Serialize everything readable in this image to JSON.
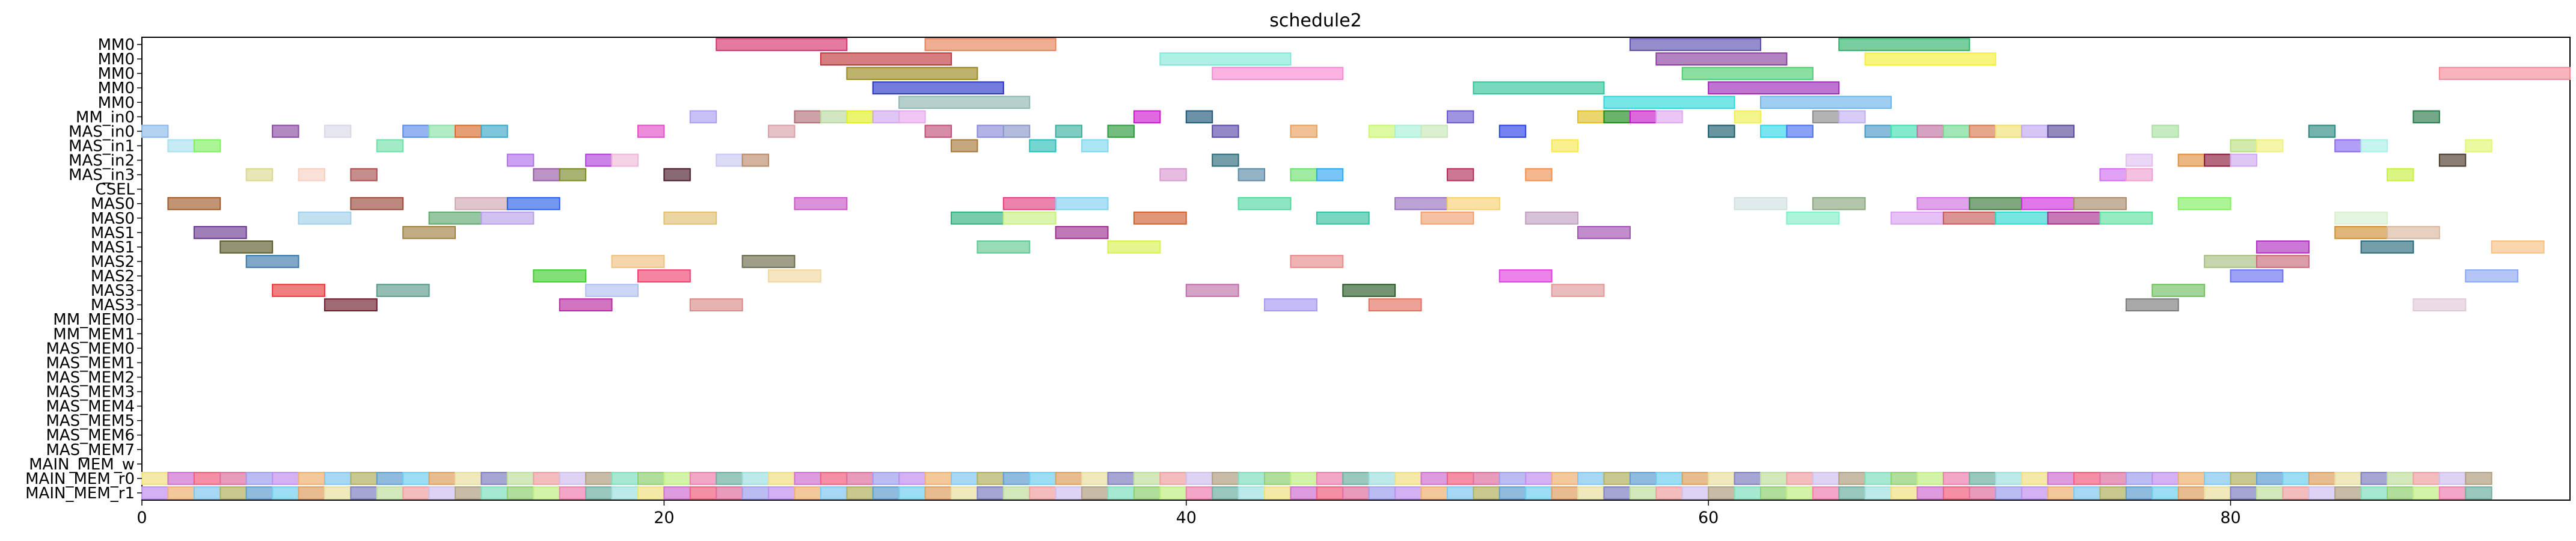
{
  "chart_data": {
    "type": "gantt",
    "title": "schedule2",
    "xlabel": "",
    "ylabel": "",
    "xlim": [
      0,
      93
    ],
    "x_ticks": [
      0,
      20,
      40,
      60,
      80
    ],
    "grid": false,
    "legend": "none",
    "rows": [
      "MM0",
      "MM0",
      "MM0",
      "MM0",
      "MM0",
      "MM_in0",
      "MAS_in0",
      "MAS_in1",
      "MAS_in2",
      "MAS_in3",
      "CSEL",
      "MAS0",
      "MAS0",
      "MAS1",
      "MAS1",
      "MAS2",
      "MAS2",
      "MAS3",
      "MAS3",
      "MM_MEM0",
      "MM_MEM1",
      "MAS_MEM0",
      "MAS_MEM1",
      "MAS_MEM2",
      "MAS_MEM3",
      "MAS_MEM4",
      "MAS_MEM5",
      "MAS_MEM6",
      "MAS_MEM7",
      "MAIN_MEM_w",
      "MAIN_MEM_r0",
      "MAIN_MEM_r1"
    ],
    "bars": [
      {
        "row": 0,
        "start": 22,
        "end": 27,
        "color": "#d6336c"
      },
      {
        "row": 0,
        "start": 30,
        "end": 35,
        "color": "#e8825a"
      },
      {
        "row": 0,
        "start": 57,
        "end": 62,
        "color": "#5a4fb0"
      },
      {
        "row": 0,
        "start": 65,
        "end": 70,
        "color": "#2fb36a"
      },
      {
        "row": 1,
        "start": 26,
        "end": 31,
        "color": "#c0383c"
      },
      {
        "row": 1,
        "start": 39,
        "end": 44,
        "color": "#7fe8d8"
      },
      {
        "row": 1,
        "start": 58,
        "end": 63,
        "color": "#8a3fa0"
      },
      {
        "row": 1,
        "start": 66,
        "end": 71,
        "color": "#f5f03a"
      },
      {
        "row": 2,
        "start": 27,
        "end": 32,
        "color": "#9a8a1f"
      },
      {
        "row": 2,
        "start": 41,
        "end": 46,
        "color": "#f98ad2"
      },
      {
        "row": 2,
        "start": 59,
        "end": 64,
        "color": "#4ccf6f"
      },
      {
        "row": 2,
        "start": 88,
        "end": 93,
        "color": "#f48a98"
      },
      {
        "row": 3,
        "start": 28,
        "end": 33,
        "color": "#2a35c8"
      },
      {
        "row": 3,
        "start": 51,
        "end": 56,
        "color": "#2fc49a"
      },
      {
        "row": 3,
        "start": 60,
        "end": 65,
        "color": "#9e2ab8"
      },
      {
        "row": 4,
        "start": 29,
        "end": 34,
        "color": "#8db7b0"
      },
      {
        "row": 4,
        "start": 56,
        "end": 61,
        "color": "#2ed8d8"
      },
      {
        "row": 4,
        "start": 62,
        "end": 67,
        "color": "#6db4e8"
      },
      {
        "row": 5,
        "start": 21,
        "end": 22,
        "color": "#a9a0f0"
      },
      {
        "row": 5,
        "start": 25,
        "end": 26,
        "color": "#b06f78"
      },
      {
        "row": 5,
        "start": 26,
        "end": 27,
        "color": "#b8d8a0"
      },
      {
        "row": 5,
        "start": 27,
        "end": 28,
        "color": "#e0f020"
      },
      {
        "row": 5,
        "start": 28,
        "end": 29,
        "color": "#cfa8f0"
      },
      {
        "row": 5,
        "start": 29,
        "end": 30,
        "color": "#e8a8f0"
      },
      {
        "row": 5,
        "start": 38,
        "end": 39,
        "color": "#d018d0"
      },
      {
        "row": 5,
        "start": 40,
        "end": 41,
        "color": "#1f5878"
      },
      {
        "row": 5,
        "start": 50,
        "end": 51,
        "color": "#6a5ad0"
      },
      {
        "row": 5,
        "start": 55,
        "end": 56,
        "color": "#e0c020"
      },
      {
        "row": 5,
        "start": 56,
        "end": 57,
        "color": "#1a8a1a"
      },
      {
        "row": 5,
        "start": 57,
        "end": 58,
        "color": "#c818c8"
      },
      {
        "row": 5,
        "start": 58,
        "end": 59,
        "color": "#e0a8f0"
      },
      {
        "row": 5,
        "start": 61,
        "end": 62,
        "color": "#f0f050"
      },
      {
        "row": 5,
        "start": 64,
        "end": 65,
        "color": "#8a8a8a"
      },
      {
        "row": 5,
        "start": 65,
        "end": 66,
        "color": "#c0b0f0"
      },
      {
        "row": 5,
        "start": 87,
        "end": 88,
        "color": "#2a7a4a"
      },
      {
        "row": 6,
        "start": 0,
        "end": 1,
        "color": "#8ab8e8"
      },
      {
        "row": 6,
        "start": 5,
        "end": 6,
        "color": "#8a4aa0"
      },
      {
        "row": 6,
        "start": 7,
        "end": 8,
        "color": "#d8d8e8"
      },
      {
        "row": 6,
        "start": 10,
        "end": 11,
        "color": "#5a8ae8"
      },
      {
        "row": 6,
        "start": 11,
        "end": 12,
        "color": "#8ae0a8"
      },
      {
        "row": 6,
        "start": 12,
        "end": 13,
        "color": "#d86a2a"
      },
      {
        "row": 6,
        "start": 13,
        "end": 14,
        "color": "#3aa8c8"
      },
      {
        "row": 6,
        "start": 19,
        "end": 20,
        "color": "#e050c8"
      },
      {
        "row": 6,
        "start": 24,
        "end": 25,
        "color": "#d8a0a8"
      },
      {
        "row": 6,
        "start": 30,
        "end": 31,
        "color": "#c05078"
      },
      {
        "row": 6,
        "start": 32,
        "end": 33,
        "color": "#8a8ad8"
      },
      {
        "row": 6,
        "start": 33,
        "end": 34,
        "color": "#8a98c8"
      },
      {
        "row": 6,
        "start": 35,
        "end": 36,
        "color": "#3ab0a0"
      },
      {
        "row": 6,
        "start": 37,
        "end": 38,
        "color": "#2a9a3a"
      },
      {
        "row": 6,
        "start": 41,
        "end": 42,
        "color": "#5a4aa8"
      },
      {
        "row": 6,
        "start": 44,
        "end": 45,
        "color": "#e8a060"
      },
      {
        "row": 6,
        "start": 47,
        "end": 48,
        "color": "#c8f870"
      },
      {
        "row": 6,
        "start": 48,
        "end": 49,
        "color": "#a8f0d8"
      },
      {
        "row": 6,
        "start": 49,
        "end": 50,
        "color": "#c8e8b8"
      },
      {
        "row": 6,
        "start": 52,
        "end": 53,
        "color": "#2a40e8"
      },
      {
        "row": 6,
        "start": 60,
        "end": 61,
        "color": "#1a5a6a"
      },
      {
        "row": 6,
        "start": 62,
        "end": 63,
        "color": "#30d8e8"
      },
      {
        "row": 6,
        "start": 63,
        "end": 64,
        "color": "#4a70f0"
      },
      {
        "row": 6,
        "start": 66,
        "end": 67,
        "color": "#4a98c8"
      },
      {
        "row": 6,
        "start": 67,
        "end": 68,
        "color": "#40e0b0"
      },
      {
        "row": 6,
        "start": 68,
        "end": 69,
        "color": "#c070a0"
      },
      {
        "row": 6,
        "start": 69,
        "end": 70,
        "color": "#70d890"
      },
      {
        "row": 6,
        "start": 70,
        "end": 71,
        "color": "#d87a50"
      },
      {
        "row": 6,
        "start": 71,
        "end": 72,
        "color": "#f0e070"
      },
      {
        "row": 6,
        "start": 72,
        "end": 73,
        "color": "#c0a8f0"
      },
      {
        "row": 6,
        "start": 73,
        "end": 74,
        "color": "#5a4a98"
      },
      {
        "row": 6,
        "start": 77,
        "end": 78,
        "color": "#a8e0a0"
      },
      {
        "row": 6,
        "start": 83,
        "end": 84,
        "color": "#2a8a80"
      },
      {
        "row": 7,
        "start": 1,
        "end": 2,
        "color": "#a8e0f0"
      },
      {
        "row": 7,
        "start": 2,
        "end": 3,
        "color": "#80f060"
      },
      {
        "row": 7,
        "start": 9,
        "end": 10,
        "color": "#70e0a8"
      },
      {
        "row": 7,
        "start": 31,
        "end": 32,
        "color": "#a8783a"
      },
      {
        "row": 7,
        "start": 34,
        "end": 35,
        "color": "#28c0b8"
      },
      {
        "row": 7,
        "start": 36,
        "end": 37,
        "color": "#80d8f0"
      },
      {
        "row": 7,
        "start": 54,
        "end": 55,
        "color": "#f8e850"
      },
      {
        "row": 7,
        "start": 80,
        "end": 81,
        "color": "#b8e080"
      },
      {
        "row": 7,
        "start": 81,
        "end": 82,
        "color": "#f0f080"
      },
      {
        "row": 7,
        "start": 84,
        "end": 85,
        "color": "#8a6af0"
      },
      {
        "row": 7,
        "start": 85,
        "end": 86,
        "color": "#a8f0e8"
      },
      {
        "row": 7,
        "start": 89,
        "end": 90,
        "color": "#e0f870"
      },
      {
        "row": 8,
        "start": 14,
        "end": 15,
        "color": "#b070e8"
      },
      {
        "row": 8,
        "start": 17,
        "end": 18,
        "color": "#b040d8"
      },
      {
        "row": 8,
        "start": 18,
        "end": 19,
        "color": "#f0b8d8"
      },
      {
        "row": 8,
        "start": 22,
        "end": 23,
        "color": "#c8c8f0"
      },
      {
        "row": 8,
        "start": 23,
        "end": 24,
        "color": "#b88a6a"
      },
      {
        "row": 8,
        "start": 41,
        "end": 42,
        "color": "#2a6a7a"
      },
      {
        "row": 8,
        "start": 76,
        "end": 77,
        "color": "#e0c0f0"
      },
      {
        "row": 8,
        "start": 78,
        "end": 79,
        "color": "#e09040"
      },
      {
        "row": 8,
        "start": 79,
        "end": 80,
        "color": "#8a1a3a"
      },
      {
        "row": 8,
        "start": 80,
        "end": 81,
        "color": "#d0a8f0"
      },
      {
        "row": 8,
        "start": 88,
        "end": 89,
        "color": "#4a3a2a"
      },
      {
        "row": 9,
        "start": 4,
        "end": 5,
        "color": "#d8d890"
      },
      {
        "row": 9,
        "start": 6,
        "end": 7,
        "color": "#f8d0c0"
      },
      {
        "row": 9,
        "start": 8,
        "end": 9,
        "color": "#a85050"
      },
      {
        "row": 9,
        "start": 15,
        "end": 16,
        "color": "#9a5aa8"
      },
      {
        "row": 9,
        "start": 16,
        "end": 17,
        "color": "#7a8a28"
      },
      {
        "row": 9,
        "start": 20,
        "end": 21,
        "color": "#4a1a2a"
      },
      {
        "row": 9,
        "start": 39,
        "end": 40,
        "color": "#d898d0"
      },
      {
        "row": 9,
        "start": 42,
        "end": 43,
        "color": "#5a8aa8"
      },
      {
        "row": 9,
        "start": 44,
        "end": 45,
        "color": "#70e070"
      },
      {
        "row": 9,
        "start": 45,
        "end": 46,
        "color": "#30a8f0"
      },
      {
        "row": 9,
        "start": 50,
        "end": 51,
        "color": "#b0305a"
      },
      {
        "row": 9,
        "start": 53,
        "end": 54,
        "color": "#f09050"
      },
      {
        "row": 9,
        "start": 75,
        "end": 76,
        "color": "#d070f0"
      },
      {
        "row": 9,
        "start": 76,
        "end": 77,
        "color": "#f0a0d0"
      },
      {
        "row": 9,
        "start": 86,
        "end": 87,
        "color": "#c8f040"
      },
      {
        "row": 11,
        "start": 1,
        "end": 3,
        "color": "#a05a2a"
      },
      {
        "row": 11,
        "start": 8,
        "end": 10,
        "color": "#9a4a3a"
      },
      {
        "row": 11,
        "start": 12,
        "end": 14,
        "color": "#d0a8b0"
      },
      {
        "row": 11,
        "start": 14,
        "end": 16,
        "color": "#2a60e8"
      },
      {
        "row": 11,
        "start": 25,
        "end": 27,
        "color": "#c858c8"
      },
      {
        "row": 11,
        "start": 33,
        "end": 35,
        "color": "#e04080"
      },
      {
        "row": 11,
        "start": 35,
        "end": 37,
        "color": "#80d0f0"
      },
      {
        "row": 11,
        "start": 42,
        "end": 44,
        "color": "#50d8a0"
      },
      {
        "row": 11,
        "start": 48,
        "end": 50,
        "color": "#9a70c0"
      },
      {
        "row": 11,
        "start": 50,
        "end": 52,
        "color": "#f8d070"
      },
      {
        "row": 11,
        "start": 61,
        "end": 63,
        "color": "#d0e0e0"
      },
      {
        "row": 11,
        "start": 64,
        "end": 66,
        "color": "#8aa880"
      },
      {
        "row": 11,
        "start": 68,
        "end": 70,
        "color": "#d070e0"
      },
      {
        "row": 11,
        "start": 70,
        "end": 72,
        "color": "#3a7a3a"
      },
      {
        "row": 11,
        "start": 72,
        "end": 74,
        "color": "#d030e0"
      },
      {
        "row": 11,
        "start": 74,
        "end": 76,
        "color": "#a88a6a"
      },
      {
        "row": 11,
        "start": 78,
        "end": 80,
        "color": "#80f060"
      },
      {
        "row": 12,
        "start": 6,
        "end": 8,
        "color": "#a0d0e8"
      },
      {
        "row": 12,
        "start": 11,
        "end": 13,
        "color": "#60a870"
      },
      {
        "row": 12,
        "start": 13,
        "end": 15,
        "color": "#b8a0e8"
      },
      {
        "row": 12,
        "start": 20,
        "end": 22,
        "color": "#e0c070"
      },
      {
        "row": 12,
        "start": 31,
        "end": 33,
        "color": "#30b080"
      },
      {
        "row": 12,
        "start": 33,
        "end": 35,
        "color": "#c8f080"
      },
      {
        "row": 12,
        "start": 38,
        "end": 40,
        "color": "#d06030"
      },
      {
        "row": 12,
        "start": 45,
        "end": 47,
        "color": "#30c0a0"
      },
      {
        "row": 12,
        "start": 49,
        "end": 51,
        "color": "#f0a070"
      },
      {
        "row": 12,
        "start": 53,
        "end": 55,
        "color": "#c0a0c0"
      },
      {
        "row": 12,
        "start": 63,
        "end": 65,
        "color": "#80f0c8"
      },
      {
        "row": 12,
        "start": 67,
        "end": 69,
        "color": "#d8a0f0"
      },
      {
        "row": 12,
        "start": 69,
        "end": 71,
        "color": "#c85a5a"
      },
      {
        "row": 12,
        "start": 71,
        "end": 73,
        "color": "#30d8d0"
      },
      {
        "row": 12,
        "start": 73,
        "end": 75,
        "color": "#a83090"
      },
      {
        "row": 12,
        "start": 75,
        "end": 77,
        "color": "#60e0a0"
      },
      {
        "row": 12,
        "start": 84,
        "end": 86,
        "color": "#d8f0d0"
      },
      {
        "row": 13,
        "start": 2,
        "end": 4,
        "color": "#6a3a90"
      },
      {
        "row": 13,
        "start": 10,
        "end": 12,
        "color": "#a08040"
      },
      {
        "row": 13,
        "start": 35,
        "end": 37,
        "color": "#a03090"
      },
      {
        "row": 13,
        "start": 55,
        "end": 57,
        "color": "#a050b0"
      },
      {
        "row": 13,
        "start": 84,
        "end": 86,
        "color": "#d09030"
      },
      {
        "row": 13,
        "start": 86,
        "end": 88,
        "color": "#d8b8a0"
      },
      {
        "row": 14,
        "start": 3,
        "end": 5,
        "color": "#5a5a2a"
      },
      {
        "row": 14,
        "start": 32,
        "end": 34,
        "color": "#60c890"
      },
      {
        "row": 14,
        "start": 37,
        "end": 39,
        "color": "#d8f050"
      },
      {
        "row": 14,
        "start": 81,
        "end": 83,
        "color": "#b030c0"
      },
      {
        "row": 14,
        "start": 85,
        "end": 87,
        "color": "#2a6a7a"
      },
      {
        "row": 14,
        "start": 90,
        "end": 92,
        "color": "#f8c080"
      },
      {
        "row": 15,
        "start": 4,
        "end": 6,
        "color": "#3a78a8"
      },
      {
        "row": 15,
        "start": 18,
        "end": 20,
        "color": "#f0c080"
      },
      {
        "row": 15,
        "start": 23,
        "end": 25,
        "color": "#6a6a4a"
      },
      {
        "row": 15,
        "start": 44,
        "end": 46,
        "color": "#e88a8a"
      },
      {
        "row": 15,
        "start": 79,
        "end": 81,
        "color": "#a8c080"
      },
      {
        "row": 15,
        "start": 81,
        "end": 83,
        "color": "#c86a7a"
      },
      {
        "row": 16,
        "start": 15,
        "end": 17,
        "color": "#40d030"
      },
      {
        "row": 16,
        "start": 19,
        "end": 21,
        "color": "#f04070"
      },
      {
        "row": 16,
        "start": 24,
        "end": 26,
        "color": "#f0d8a0"
      },
      {
        "row": 16,
        "start": 52,
        "end": 54,
        "color": "#e040e0"
      },
      {
        "row": 16,
        "start": 80,
        "end": 82,
        "color": "#6a70f0"
      },
      {
        "row": 16,
        "start": 89,
        "end": 91,
        "color": "#8aa8f0"
      },
      {
        "row": 17,
        "start": 5,
        "end": 7,
        "color": "#e83a3a"
      },
      {
        "row": 17,
        "start": 9,
        "end": 11,
        "color": "#5a9a8a"
      },
      {
        "row": 17,
        "start": 17,
        "end": 19,
        "color": "#b0c0f0"
      },
      {
        "row": 17,
        "start": 40,
        "end": 42,
        "color": "#c070a8"
      },
      {
        "row": 17,
        "start": 46,
        "end": 48,
        "color": "#2a5a2a"
      },
      {
        "row": 17,
        "start": 54,
        "end": 56,
        "color": "#e09898"
      },
      {
        "row": 17,
        "start": 77,
        "end": 79,
        "color": "#70c060"
      },
      {
        "row": 18,
        "start": 7,
        "end": 9,
        "color": "#6a1a2a"
      },
      {
        "row": 18,
        "start": 16,
        "end": 18,
        "color": "#b82aa0"
      },
      {
        "row": 18,
        "start": 21,
        "end": 23,
        "color": "#d88a8a"
      },
      {
        "row": 18,
        "start": 43,
        "end": 45,
        "color": "#a898f0"
      },
      {
        "row": 18,
        "start": 47,
        "end": 49,
        "color": "#e07060"
      },
      {
        "row": 18,
        "start": 76,
        "end": 78,
        "color": "#7a7a7a"
      },
      {
        "row": 18,
        "start": 87,
        "end": 89,
        "color": "#e0c8d8"
      }
    ],
    "mem_colors": [
      "#f0e080",
      "#80c8f0",
      "#c0e0a0",
      "#f080b0",
      "#a0a0f0",
      "#e0a060",
      "#80e0c0",
      "#d070d0",
      "#b0b060",
      "#f0a0a0",
      "#70b0a0",
      "#c090f0",
      "#e8e0a0",
      "#90d070",
      "#f06080",
      "#60a0d0",
      "#d0c0f0",
      "#a0e0e0",
      "#f0b070",
      "#8080c0",
      "#c0f080",
      "#e070a0",
      "#70d0f0",
      "#b0a080"
    ],
    "mem_count": 90
  }
}
